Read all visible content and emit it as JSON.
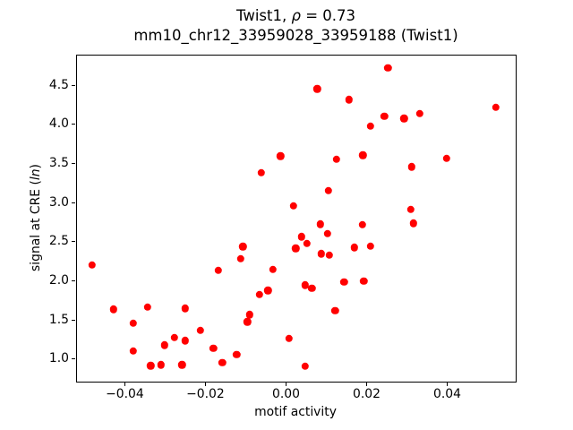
{
  "title": {
    "part1": "Twist1, ",
    "rho": "ρ",
    "part2": " = 0.73",
    "line2": "mm10_chr12_33959028_33959188 (Twist1)"
  },
  "axes": {
    "xlabel": "motif activity",
    "ylabel_prefix": "signal at CRE (",
    "ylabel_italic": "ln",
    "ylabel_suffix": ")"
  },
  "chart_data": {
    "type": "scatter",
    "title": "Twist1, ρ = 0.73",
    "subtitle": "mm10_chr12_33959028_33959188 (Twist1)",
    "xlabel": "motif activity",
    "ylabel": "signal at CRE (ln)",
    "legend": "none",
    "grid": false,
    "marker_color": "#ff0000",
    "marker_shape": "circle",
    "xlim": [
      -0.0521,
      0.057
    ],
    "ylim": [
      0.706,
      4.887
    ],
    "xticks": [
      {
        "value": -0.04,
        "label": "−0.04"
      },
      {
        "value": -0.02,
        "label": "−0.02"
      },
      {
        "value": 0.0,
        "label": "0.00"
      },
      {
        "value": 0.02,
        "label": "0.02"
      },
      {
        "value": 0.04,
        "label": "0.04"
      }
    ],
    "yticks": [
      {
        "value": 1.0,
        "label": "1.0"
      },
      {
        "value": 1.5,
        "label": "1.5"
      },
      {
        "value": 2.0,
        "label": "2.0"
      },
      {
        "value": 2.5,
        "label": "2.5"
      },
      {
        "value": 3.0,
        "label": "3.0"
      },
      {
        "value": 3.5,
        "label": "3.5"
      },
      {
        "value": 4.0,
        "label": "4.0"
      },
      {
        "value": 4.5,
        "label": "4.5"
      }
    ],
    "points": [
      [
        0.0253,
        4.72
      ],
      [
        0.0077,
        4.45
      ],
      [
        0.0156,
        4.31
      ],
      [
        0.0244,
        4.1
      ],
      [
        0.021,
        3.97
      ],
      [
        0.0293,
        4.07
      ],
      [
        0.0332,
        4.13
      ],
      [
        0.0521,
        4.21
      ],
      [
        -0.0014,
        3.59
      ],
      [
        0.0125,
        3.55
      ],
      [
        0.0191,
        3.6
      ],
      [
        0.0399,
        3.56
      ],
      [
        0.0312,
        3.45
      ],
      [
        -0.0062,
        3.38
      ],
      [
        0.0105,
        3.15
      ],
      [
        0.0018,
        2.95
      ],
      [
        0.031,
        2.91
      ],
      [
        0.0316,
        2.73
      ],
      [
        0.0085,
        2.72
      ],
      [
        0.019,
        2.71
      ],
      [
        0.0103,
        2.6
      ],
      [
        0.0039,
        2.56
      ],
      [
        0.0052,
        2.47
      ],
      [
        0.0024,
        2.41
      ],
      [
        -0.0107,
        2.43
      ],
      [
        -0.0113,
        2.28
      ],
      [
        0.0169,
        2.42
      ],
      [
        0.021,
        2.44
      ],
      [
        0.0088,
        2.34
      ],
      [
        0.0107,
        2.32
      ],
      [
        -0.0481,
        2.2
      ],
      [
        -0.0168,
        2.13
      ],
      [
        -0.0033,
        2.14
      ],
      [
        0.0144,
        1.98
      ],
      [
        0.0193,
        1.99
      ],
      [
        0.0048,
        1.94
      ],
      [
        0.0064,
        1.9
      ],
      [
        -0.0066,
        1.82
      ],
      [
        -0.0045,
        1.87
      ],
      [
        -0.009,
        1.56
      ],
      [
        -0.0096,
        1.47
      ],
      [
        0.0122,
        1.61
      ],
      [
        -0.0428,
        1.63
      ],
      [
        -0.0344,
        1.66
      ],
      [
        -0.025,
        1.64
      ],
      [
        -0.0379,
        1.45
      ],
      [
        -0.0213,
        1.36
      ],
      [
        -0.0277,
        1.27
      ],
      [
        -0.0302,
        1.17
      ],
      [
        -0.025,
        1.23
      ],
      [
        -0.0379,
        1.1
      ],
      [
        -0.018,
        1.13
      ],
      [
        0.0008,
        1.26
      ],
      [
        -0.0123,
        1.05
      ],
      [
        -0.0336,
        0.91
      ],
      [
        -0.0311,
        0.92
      ],
      [
        -0.0258,
        0.92
      ],
      [
        -0.0158,
        0.95
      ],
      [
        0.0048,
        0.9
      ]
    ]
  }
}
